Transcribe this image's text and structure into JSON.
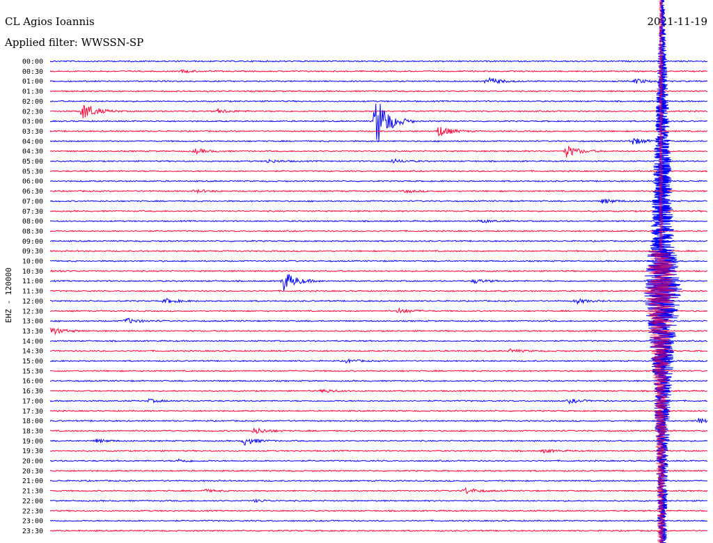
{
  "header": {
    "station": "CL Agios Ioannis",
    "date": "2021-11-19",
    "filter": "Applied filter: WWSSN-SP"
  },
  "colors": {
    "blue": "#0000ff",
    "red": "#ff0033",
    "background": "#ffffff"
  },
  "chart_data": {
    "type": "line",
    "title": "CL Agios Ioannis",
    "subtitle": "Applied filter: WWSSN-SP",
    "ylabel": "EHZ - 120000",
    "xlabel": "",
    "grid": false,
    "legend": "none",
    "rows": [
      "00:00",
      "00:30",
      "01:00",
      "01:30",
      "02:00",
      "02:30",
      "03:00",
      "03:30",
      "04:00",
      "04:30",
      "05:00",
      "05:30",
      "06:00",
      "06:30",
      "07:00",
      "07:30",
      "08:00",
      "08:30",
      "09:00",
      "09:30",
      "10:00",
      "10:30",
      "11:00",
      "11:30",
      "12:00",
      "12:30",
      "13:00",
      "13:30",
      "14:00",
      "14:30",
      "15:00",
      "15:30",
      "16:00",
      "16:30",
      "17:00",
      "17:30",
      "18:00",
      "18:30",
      "19:00",
      "19:30",
      "20:00",
      "20:30",
      "21:00",
      "21:30",
      "22:00",
      "22:30",
      "23:00",
      "23:30"
    ],
    "row_colors": [
      "blue",
      "red"
    ],
    "events": [
      {
        "row": "00:30",
        "x": 0.2,
        "amp": 0.3
      },
      {
        "row": "01:00",
        "x": 0.665,
        "amp": 0.9
      },
      {
        "row": "01:00",
        "x": 0.89,
        "amp": 0.6
      },
      {
        "row": "02:30",
        "x": 0.05,
        "amp": 2.2
      },
      {
        "row": "02:30",
        "x": 0.255,
        "amp": 0.5
      },
      {
        "row": "03:00",
        "x": 0.495,
        "amp": 7.0
      },
      {
        "row": "03:30",
        "x": 0.59,
        "amp": 1.4
      },
      {
        "row": "04:00",
        "x": 0.885,
        "amp": 0.9
      },
      {
        "row": "04:30",
        "x": 0.22,
        "amp": 0.6
      },
      {
        "row": "04:30",
        "x": 0.785,
        "amp": 1.5
      },
      {
        "row": "05:00",
        "x": 0.33,
        "amp": 0.4
      },
      {
        "row": "05:00",
        "x": 0.52,
        "amp": 0.5
      },
      {
        "row": "06:30",
        "x": 0.22,
        "amp": 0.4
      },
      {
        "row": "06:30",
        "x": 0.54,
        "amp": 0.3
      },
      {
        "row": "07:00",
        "x": 0.84,
        "amp": 0.6
      },
      {
        "row": "08:00",
        "x": 0.655,
        "amp": 0.4
      },
      {
        "row": "10:30",
        "x": 0.0,
        "amp": 0.2
      },
      {
        "row": "11:00",
        "x": 0.355,
        "amp": 2.5
      },
      {
        "row": "11:00",
        "x": 0.645,
        "amp": 0.5
      },
      {
        "row": "12:00",
        "x": 0.175,
        "amp": 0.6
      },
      {
        "row": "12:00",
        "x": 0.8,
        "amp": 0.6
      },
      {
        "row": "12:30",
        "x": 0.53,
        "amp": 0.7
      },
      {
        "row": "13:00",
        "x": 0.115,
        "amp": 0.7
      },
      {
        "row": "13:30",
        "x": 0.0,
        "amp": 1.0
      },
      {
        "row": "14:30",
        "x": 0.7,
        "amp": 0.4
      },
      {
        "row": "15:00",
        "x": 0.45,
        "amp": 0.4
      },
      {
        "row": "16:30",
        "x": 0.415,
        "amp": 0.5
      },
      {
        "row": "17:00",
        "x": 0.15,
        "amp": 0.4
      },
      {
        "row": "17:00",
        "x": 0.79,
        "amp": 0.5
      },
      {
        "row": "18:00",
        "x": 0.985,
        "amp": 0.6
      },
      {
        "row": "18:30",
        "x": 0.31,
        "amp": 0.8
      },
      {
        "row": "19:00",
        "x": 0.07,
        "amp": 0.4
      },
      {
        "row": "19:00",
        "x": 0.295,
        "amp": 1.0
      },
      {
        "row": "19:30",
        "x": 0.75,
        "amp": 0.4
      },
      {
        "row": "20:00",
        "x": 0.195,
        "amp": 0.4
      },
      {
        "row": "21:30",
        "x": 0.63,
        "amp": 0.8
      },
      {
        "row": "21:30",
        "x": 0.235,
        "amp": 0.3
      },
      {
        "row": "22:00",
        "x": 0.31,
        "amp": 0.3
      }
    ],
    "mainshock": {
      "row": "11:30",
      "x": 0.925
    }
  }
}
